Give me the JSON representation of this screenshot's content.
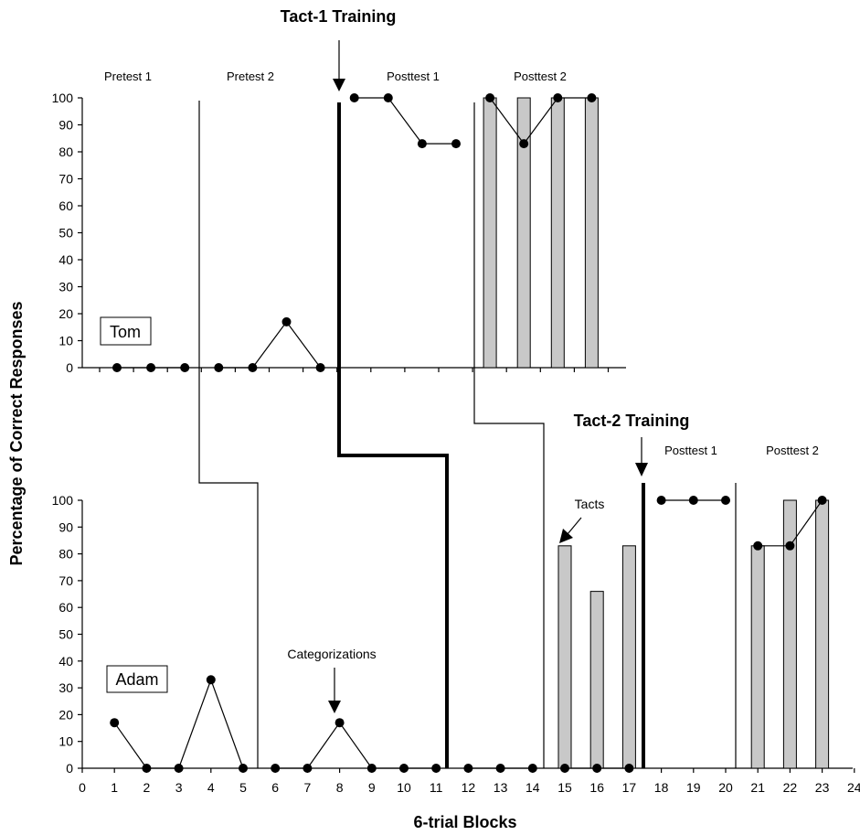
{
  "chart_data": {
    "type": "multiple-baseline",
    "ylabel": "Percentage of Correct Responses",
    "xlabel": "6-trial Blocks",
    "x_ticks": [
      0,
      1,
      2,
      3,
      4,
      5,
      6,
      7,
      8,
      9,
      10,
      11,
      12,
      13,
      14,
      15,
      16,
      17,
      18,
      19,
      20,
      21,
      22,
      23,
      24
    ],
    "y_ticks": [
      0,
      10,
      20,
      30,
      40,
      50,
      60,
      70,
      80,
      90,
      100
    ],
    "ylim": [
      0,
      100
    ],
    "xlim": [
      0,
      24
    ],
    "interventions": [
      {
        "label": "Tact-1 Training"
      },
      {
        "label": "Tact-2 Training"
      }
    ],
    "annotations": [
      {
        "label": "Categorizations"
      },
      {
        "label": "Tacts"
      }
    ],
    "panels": [
      {
        "participant": "Tom",
        "phases": [
          "Pretest 1",
          "Pretest 2",
          "Posttest 1",
          "Posttest 2"
        ],
        "categorizations": {
          "x": [
            1,
            2,
            3,
            4,
            5,
            6,
            7,
            8,
            9,
            10,
            11,
            12,
            13,
            14,
            15
          ],
          "y": [
            0,
            0,
            0,
            0,
            0,
            17,
            0,
            100,
            100,
            83,
            83,
            100,
            83,
            100,
            100
          ]
        },
        "tacts": {
          "x": [
            12,
            13,
            14,
            15
          ],
          "y": [
            100,
            100,
            100,
            100
          ]
        }
      },
      {
        "participant": "Adam",
        "phases": [
          "Posttest 1",
          "Posttest 2"
        ],
        "categorizations": {
          "x": [
            1,
            2,
            3,
            4,
            5,
            6,
            7,
            8,
            9,
            10,
            11,
            12,
            13,
            14,
            15,
            16,
            17,
            18,
            19,
            20,
            21,
            22,
            23
          ],
          "y": [
            17,
            0,
            0,
            33,
            0,
            0,
            0,
            17,
            0,
            0,
            0,
            0,
            0,
            0,
            0,
            0,
            0,
            100,
            100,
            100,
            83,
            83,
            100
          ]
        },
        "tacts": {
          "x": [
            15,
            16,
            17,
            21,
            22,
            23
          ],
          "y": [
            83,
            66,
            83,
            83,
            100,
            100
          ]
        }
      }
    ]
  }
}
